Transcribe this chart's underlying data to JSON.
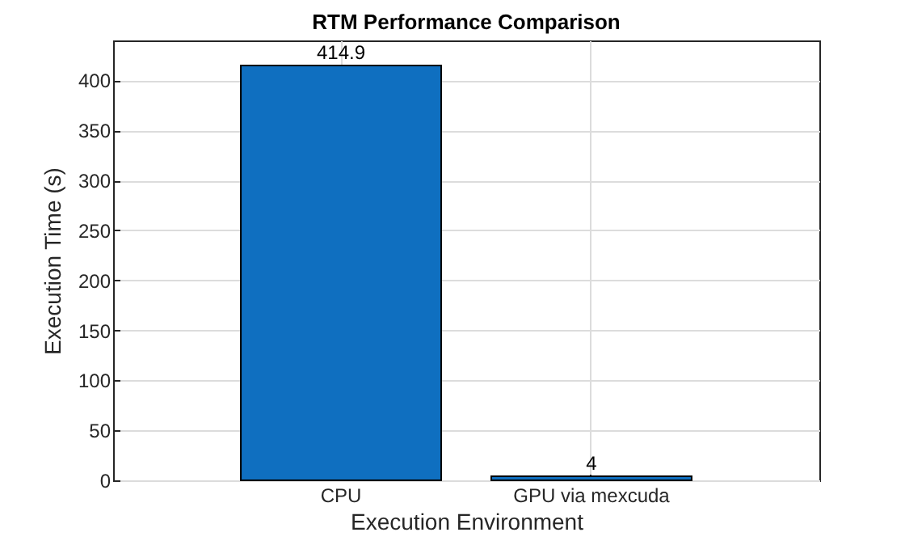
{
  "chart_data": {
    "type": "bar",
    "title": "RTM Performance Comparison",
    "xlabel": "Execution Environment",
    "ylabel": "Execution Time (s)",
    "categories": [
      "CPU",
      "GPU via mexcuda"
    ],
    "values": [
      414.9,
      4
    ],
    "color": "#0f6fc0",
    "ylim": [
      0,
      440
    ],
    "yticks": [
      0,
      50,
      100,
      150,
      200,
      250,
      300,
      350,
      400
    ],
    "grid": true,
    "data_labels": true
  }
}
